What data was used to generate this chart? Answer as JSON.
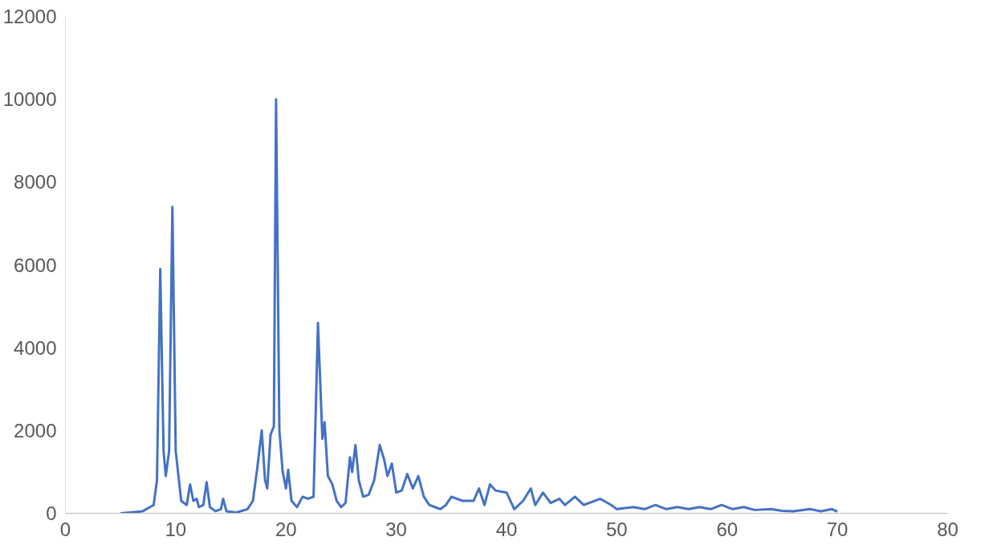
{
  "chart_data": {
    "type": "line",
    "xlim": [
      0,
      80
    ],
    "xticks": [
      0,
      10,
      20,
      30,
      40,
      50,
      60,
      70,
      80
    ],
    "ylim": [
      0,
      12000
    ],
    "yticks": [
      0,
      2000,
      4000,
      6000,
      8000,
      10000,
      12000
    ],
    "grid": false,
    "marker": "none",
    "line_style": "solid",
    "series": [
      {
        "color": "#4472c4",
        "x": [
          5,
          7,
          8,
          8.3,
          8.6,
          8.9,
          9.1,
          9.4,
          9.7,
          10.0,
          10.5,
          11.0,
          11.3,
          11.6,
          11.9,
          12.1,
          12.5,
          12.8,
          13.1,
          13.6,
          14.1,
          14.3,
          14.6,
          15.5,
          16.5,
          17.0,
          17.4,
          17.8,
          18.1,
          18.3,
          18.6,
          18.9,
          19.1,
          19.4,
          19.7,
          20.0,
          20.2,
          20.5,
          21.0,
          21.5,
          22.0,
          22.5,
          22.9,
          23.3,
          23.5,
          23.8,
          24.2,
          24.6,
          25.0,
          25.4,
          25.8,
          26.0,
          26.3,
          26.6,
          27.0,
          27.5,
          28.0,
          28.5,
          28.9,
          29.2,
          29.6,
          30.0,
          30.5,
          31.0,
          31.5,
          32.0,
          32.5,
          33.0,
          33.5,
          34.0,
          34.5,
          35.0,
          36.0,
          37.0,
          37.5,
          38.0,
          38.5,
          39.0,
          40.0,
          40.7,
          41.5,
          42.2,
          42.6,
          43.3,
          44.0,
          44.8,
          45.3,
          46.2,
          47.0,
          48.5,
          49.5,
          50.0,
          51.5,
          52.5,
          53.5,
          54.5,
          55.5,
          56.5,
          57.5,
          58.5,
          59.5,
          60.5,
          61.5,
          62.5,
          64.0,
          65.0,
          66.0,
          67.5,
          68.5,
          69.5,
          70.0
        ],
        "values": [
          0,
          50,
          200,
          800,
          5900,
          1500,
          900,
          1500,
          7400,
          1500,
          300,
          200,
          700,
          300,
          350,
          150,
          200,
          750,
          150,
          50,
          100,
          350,
          50,
          20,
          100,
          300,
          1100,
          2000,
          800,
          600,
          1900,
          2100,
          10000,
          2000,
          1000,
          600,
          1050,
          300,
          150,
          400,
          350,
          400,
          4600,
          1800,
          2200,
          900,
          700,
          300,
          150,
          250,
          1350,
          1000,
          1650,
          800,
          400,
          450,
          800,
          1650,
          1300,
          900,
          1200,
          500,
          550,
          950,
          600,
          900,
          400,
          200,
          150,
          100,
          200,
          400,
          300,
          300,
          600,
          200,
          700,
          550,
          500,
          100,
          300,
          600,
          200,
          500,
          250,
          350,
          200,
          400,
          200,
          350,
          200,
          100,
          150,
          100,
          200,
          100,
          150,
          100,
          150,
          100,
          200,
          100,
          150,
          80,
          100,
          60,
          50,
          100,
          50,
          100,
          40
        ]
      }
    ]
  }
}
